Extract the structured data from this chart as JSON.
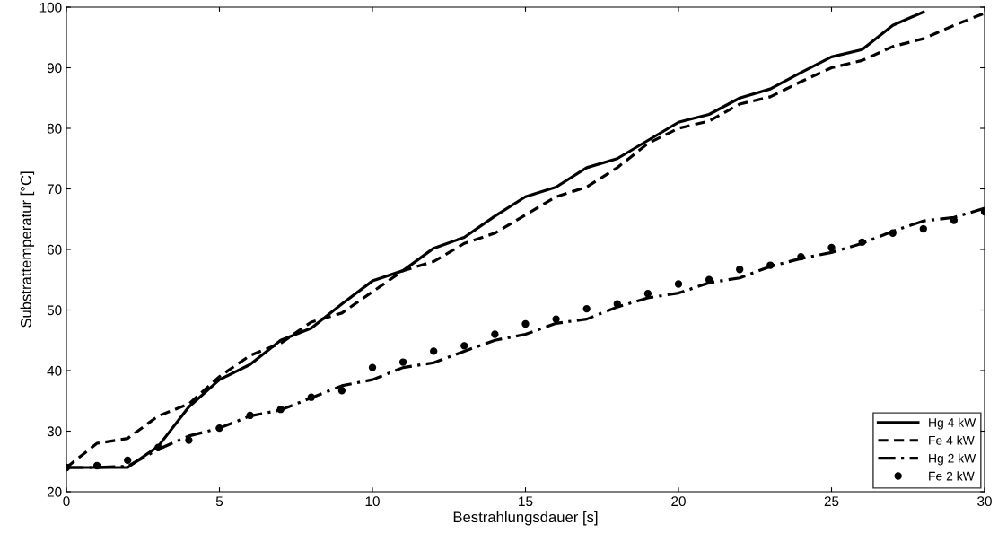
{
  "chart_data": {
    "type": "line",
    "xlabel": "Bestrahlungsdauer [s]",
    "ylabel": "Substrattemperatur [°C]",
    "xlim": [
      0,
      30
    ],
    "xticks": [
      0,
      5,
      10,
      15,
      20,
      25,
      30
    ],
    "ylim": [
      20,
      100
    ],
    "yticks": [
      20,
      30,
      40,
      50,
      60,
      70,
      80,
      90,
      100
    ],
    "grid": false,
    "legend": "bottom right",
    "x": [
      0,
      1,
      2,
      3,
      4,
      5,
      6,
      7,
      8,
      9,
      10,
      11,
      12,
      13,
      14,
      15,
      16,
      17,
      18,
      19,
      20,
      21,
      22,
      23,
      24,
      25,
      26,
      27,
      28,
      29,
      30
    ],
    "series": [
      {
        "name": "Hg 4 kW",
        "color": "#000000",
        "line_style": "solid",
        "x": [
          0,
          1,
          2,
          3,
          4,
          5,
          6,
          7,
          8,
          9,
          10,
          11,
          12,
          13,
          14,
          15,
          16,
          17,
          18,
          19,
          20,
          21,
          22,
          23,
          24,
          25,
          26,
          27,
          28
        ],
        "values": [
          24,
          24,
          24,
          27.5,
          34,
          38.5,
          41,
          45,
          47,
          51,
          54.8,
          56.5,
          60.2,
          62,
          65.5,
          68.7,
          70.3,
          73.5,
          75,
          78,
          81,
          82.3,
          85,
          86.5,
          89.2,
          91.8,
          93,
          97,
          99.2
        ]
      },
      {
        "name": "Fe 4 kW",
        "color": "#000000",
        "line_style": "dashed",
        "values": [
          24,
          28,
          28.8,
          32.5,
          34.5,
          39,
          42.5,
          44.5,
          48,
          49.5,
          53,
          56.5,
          58,
          61,
          62.7,
          65.7,
          68.7,
          70.3,
          73.5,
          77.5,
          80,
          81.2,
          84,
          85.2,
          87.7,
          90,
          91.2,
          93.5,
          94.8,
          97,
          99
        ]
      },
      {
        "name": "Hg 2 kW",
        "color": "#000000",
        "line_style": "dashdot",
        "values": [
          24,
          24,
          24.2,
          27,
          29.2,
          30.5,
          32.5,
          33.5,
          35.5,
          37.5,
          38.5,
          40.5,
          41.3,
          43.2,
          45,
          46,
          47.8,
          48.5,
          50.5,
          52,
          52.8,
          54.5,
          55.3,
          57.2,
          58.5,
          59.5,
          61,
          63,
          64.7,
          65.3,
          66.8
        ]
      },
      {
        "name": "Fe 2 kW",
        "color": "#000000",
        "type": "scatter",
        "marker": "circle",
        "values": [
          24,
          24.3,
          25.2,
          27.3,
          28.5,
          30.5,
          32.6,
          33.6,
          35.6,
          36.7,
          40.5,
          41.4,
          43.2,
          44.1,
          46,
          47.7,
          48.5,
          50.2,
          51,
          52.7,
          54.3,
          55,
          56.7,
          57.4,
          58.8,
          60.3,
          61.2,
          62.7,
          63.4,
          64.8,
          66.2
        ]
      }
    ]
  }
}
